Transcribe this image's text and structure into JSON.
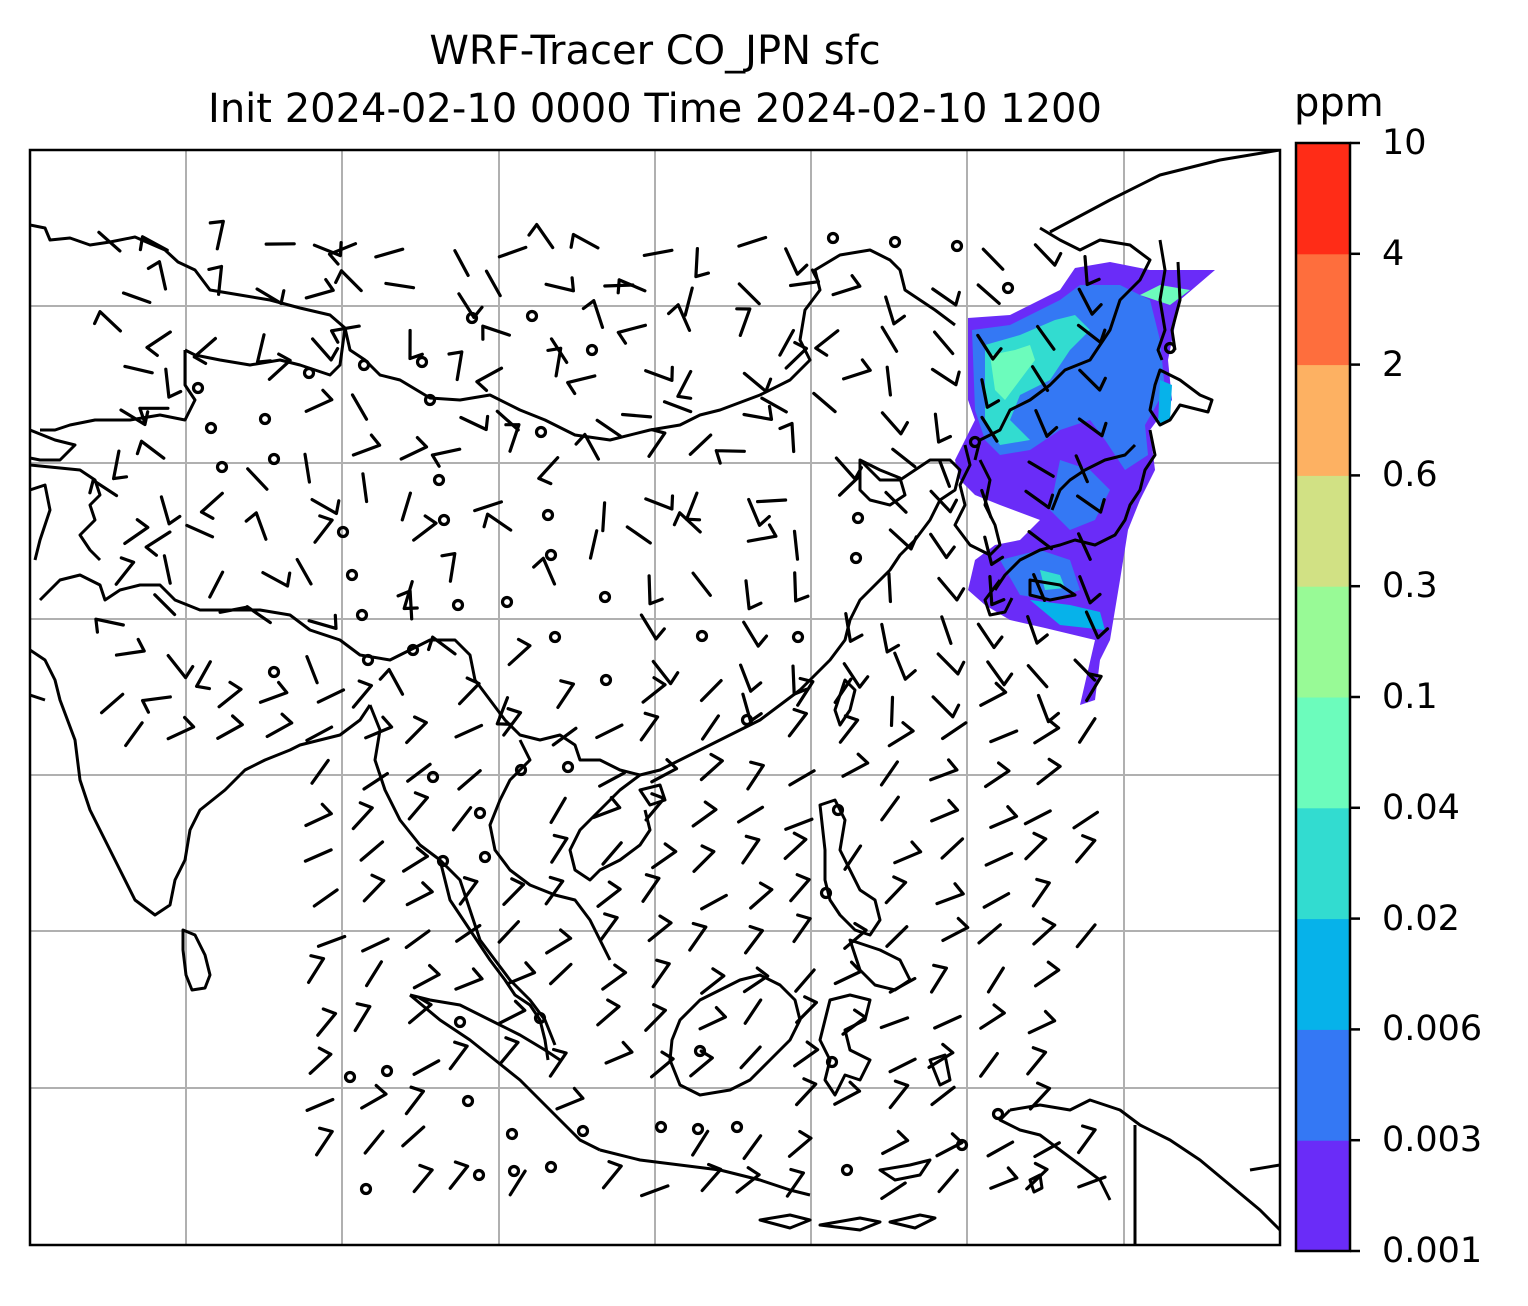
{
  "title": {
    "line1": "WRF-Tracer CO_JPN sfc",
    "line2": "Init 2024-02-10 0000 Time 2024-02-10 1200"
  },
  "colorbar": {
    "unit": "ppm",
    "ticks": [
      "0.001",
      "0.003",
      "0.006",
      "0.02",
      "0.04",
      "0.1",
      "0.3",
      "0.6",
      "2",
      "4",
      "10"
    ],
    "colors": [
      "#6a2cf8",
      "#3478f4",
      "#06b2ea",
      "#32dcd0",
      "#6cfcbc",
      "#98fa96",
      "#d1e184",
      "#fdb162",
      "#fe6e3d",
      "#ff2c17"
    ]
  },
  "map": {
    "region": "East / Southeast Asia",
    "overlay": "wind barbs",
    "gridlines": true,
    "tracer_plume_color_range": [
      "#6a2cf8",
      "#6cfcbc"
    ]
  }
}
